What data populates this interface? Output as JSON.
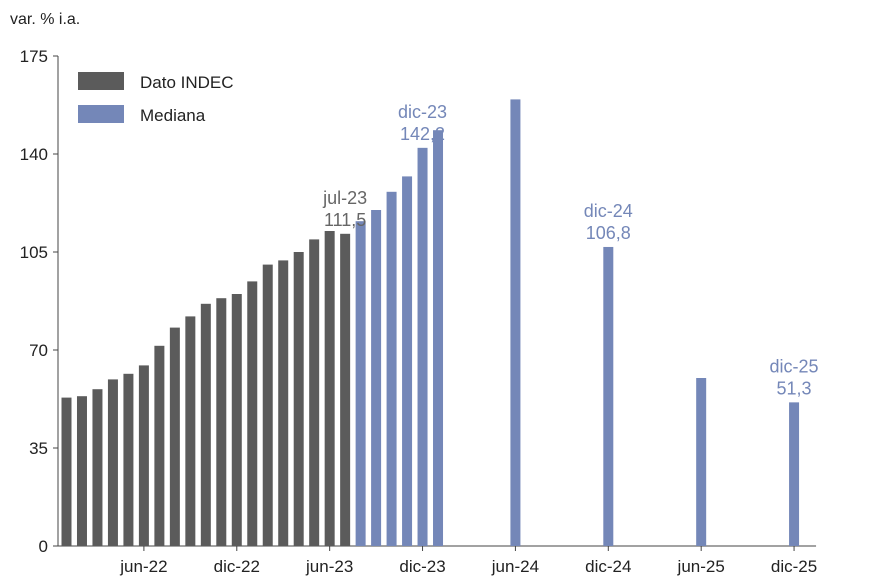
{
  "chart_data": {
    "type": "bar",
    "ylabel": "var. % i.a.",
    "ylim": [
      0,
      175
    ],
    "yticks": [
      0,
      35,
      70,
      105,
      140,
      175
    ],
    "grid": false,
    "legend_position": "top-left",
    "legend": [
      {
        "key": "indec",
        "label": "Dato INDEC",
        "color": "#5b5b5b"
      },
      {
        "key": "mediana",
        "label": "Mediana",
        "color": "#7487b8"
      }
    ],
    "x_tick_labels": [
      "jun-22",
      "dic-22",
      "jun-23",
      "dic-23",
      "jun-24",
      "dic-24",
      "jun-25",
      "dic-25"
    ],
    "series": [
      {
        "name": "Dato INDEC",
        "points": [
          {
            "x": "ene-22",
            "y": 53.0
          },
          {
            "x": "feb-22",
            "y": 53.5
          },
          {
            "x": "mar-22",
            "y": 56.0
          },
          {
            "x": "abr-22",
            "y": 59.5
          },
          {
            "x": "may-22",
            "y": 61.5
          },
          {
            "x": "jun-22",
            "y": 64.5
          },
          {
            "x": "jul-22",
            "y": 71.5
          },
          {
            "x": "ago-22",
            "y": 78.0
          },
          {
            "x": "sep-22",
            "y": 82.0
          },
          {
            "x": "oct-22",
            "y": 86.5
          },
          {
            "x": "nov-22",
            "y": 88.5
          },
          {
            "x": "dic-22",
            "y": 90.0
          },
          {
            "x": "ene-23",
            "y": 94.5
          },
          {
            "x": "feb-23",
            "y": 100.5
          },
          {
            "x": "mar-23",
            "y": 102.0
          },
          {
            "x": "abr-23",
            "y": 105.0
          },
          {
            "x": "may-23",
            "y": 109.5
          },
          {
            "x": "jun-23",
            "y": 112.5
          },
          {
            "x": "jul-23",
            "y": 111.5
          }
        ]
      },
      {
        "name": "Mediana",
        "points": [
          {
            "x": "ago-23",
            "y": 116.0
          },
          {
            "x": "sep-23",
            "y": 120.0
          },
          {
            "x": "oct-23",
            "y": 126.5
          },
          {
            "x": "nov-23",
            "y": 132.0
          },
          {
            "x": "dic-23",
            "y": 142.2
          },
          {
            "x": "ene-24",
            "y": 148.5
          },
          {
            "x": "jun-24",
            "y": 159.5
          },
          {
            "x": "dic-24",
            "y": 106.8
          },
          {
            "x": "jun-25",
            "y": 60.0
          },
          {
            "x": "dic-25",
            "y": 51.3
          }
        ]
      }
    ],
    "annotations": [
      {
        "x": "jul-23",
        "line1": "jul-23",
        "line2": "111,5",
        "color": "#666666"
      },
      {
        "x": "dic-23",
        "line1": "dic-23",
        "line2": "142,2",
        "color": "#7487b8"
      },
      {
        "x": "dic-24",
        "line1": "dic-24",
        "line2": "106,8",
        "color": "#7487b8"
      },
      {
        "x": "dic-25",
        "line1": "dic-25",
        "line2": "51,3",
        "color": "#7487b8"
      }
    ]
  }
}
